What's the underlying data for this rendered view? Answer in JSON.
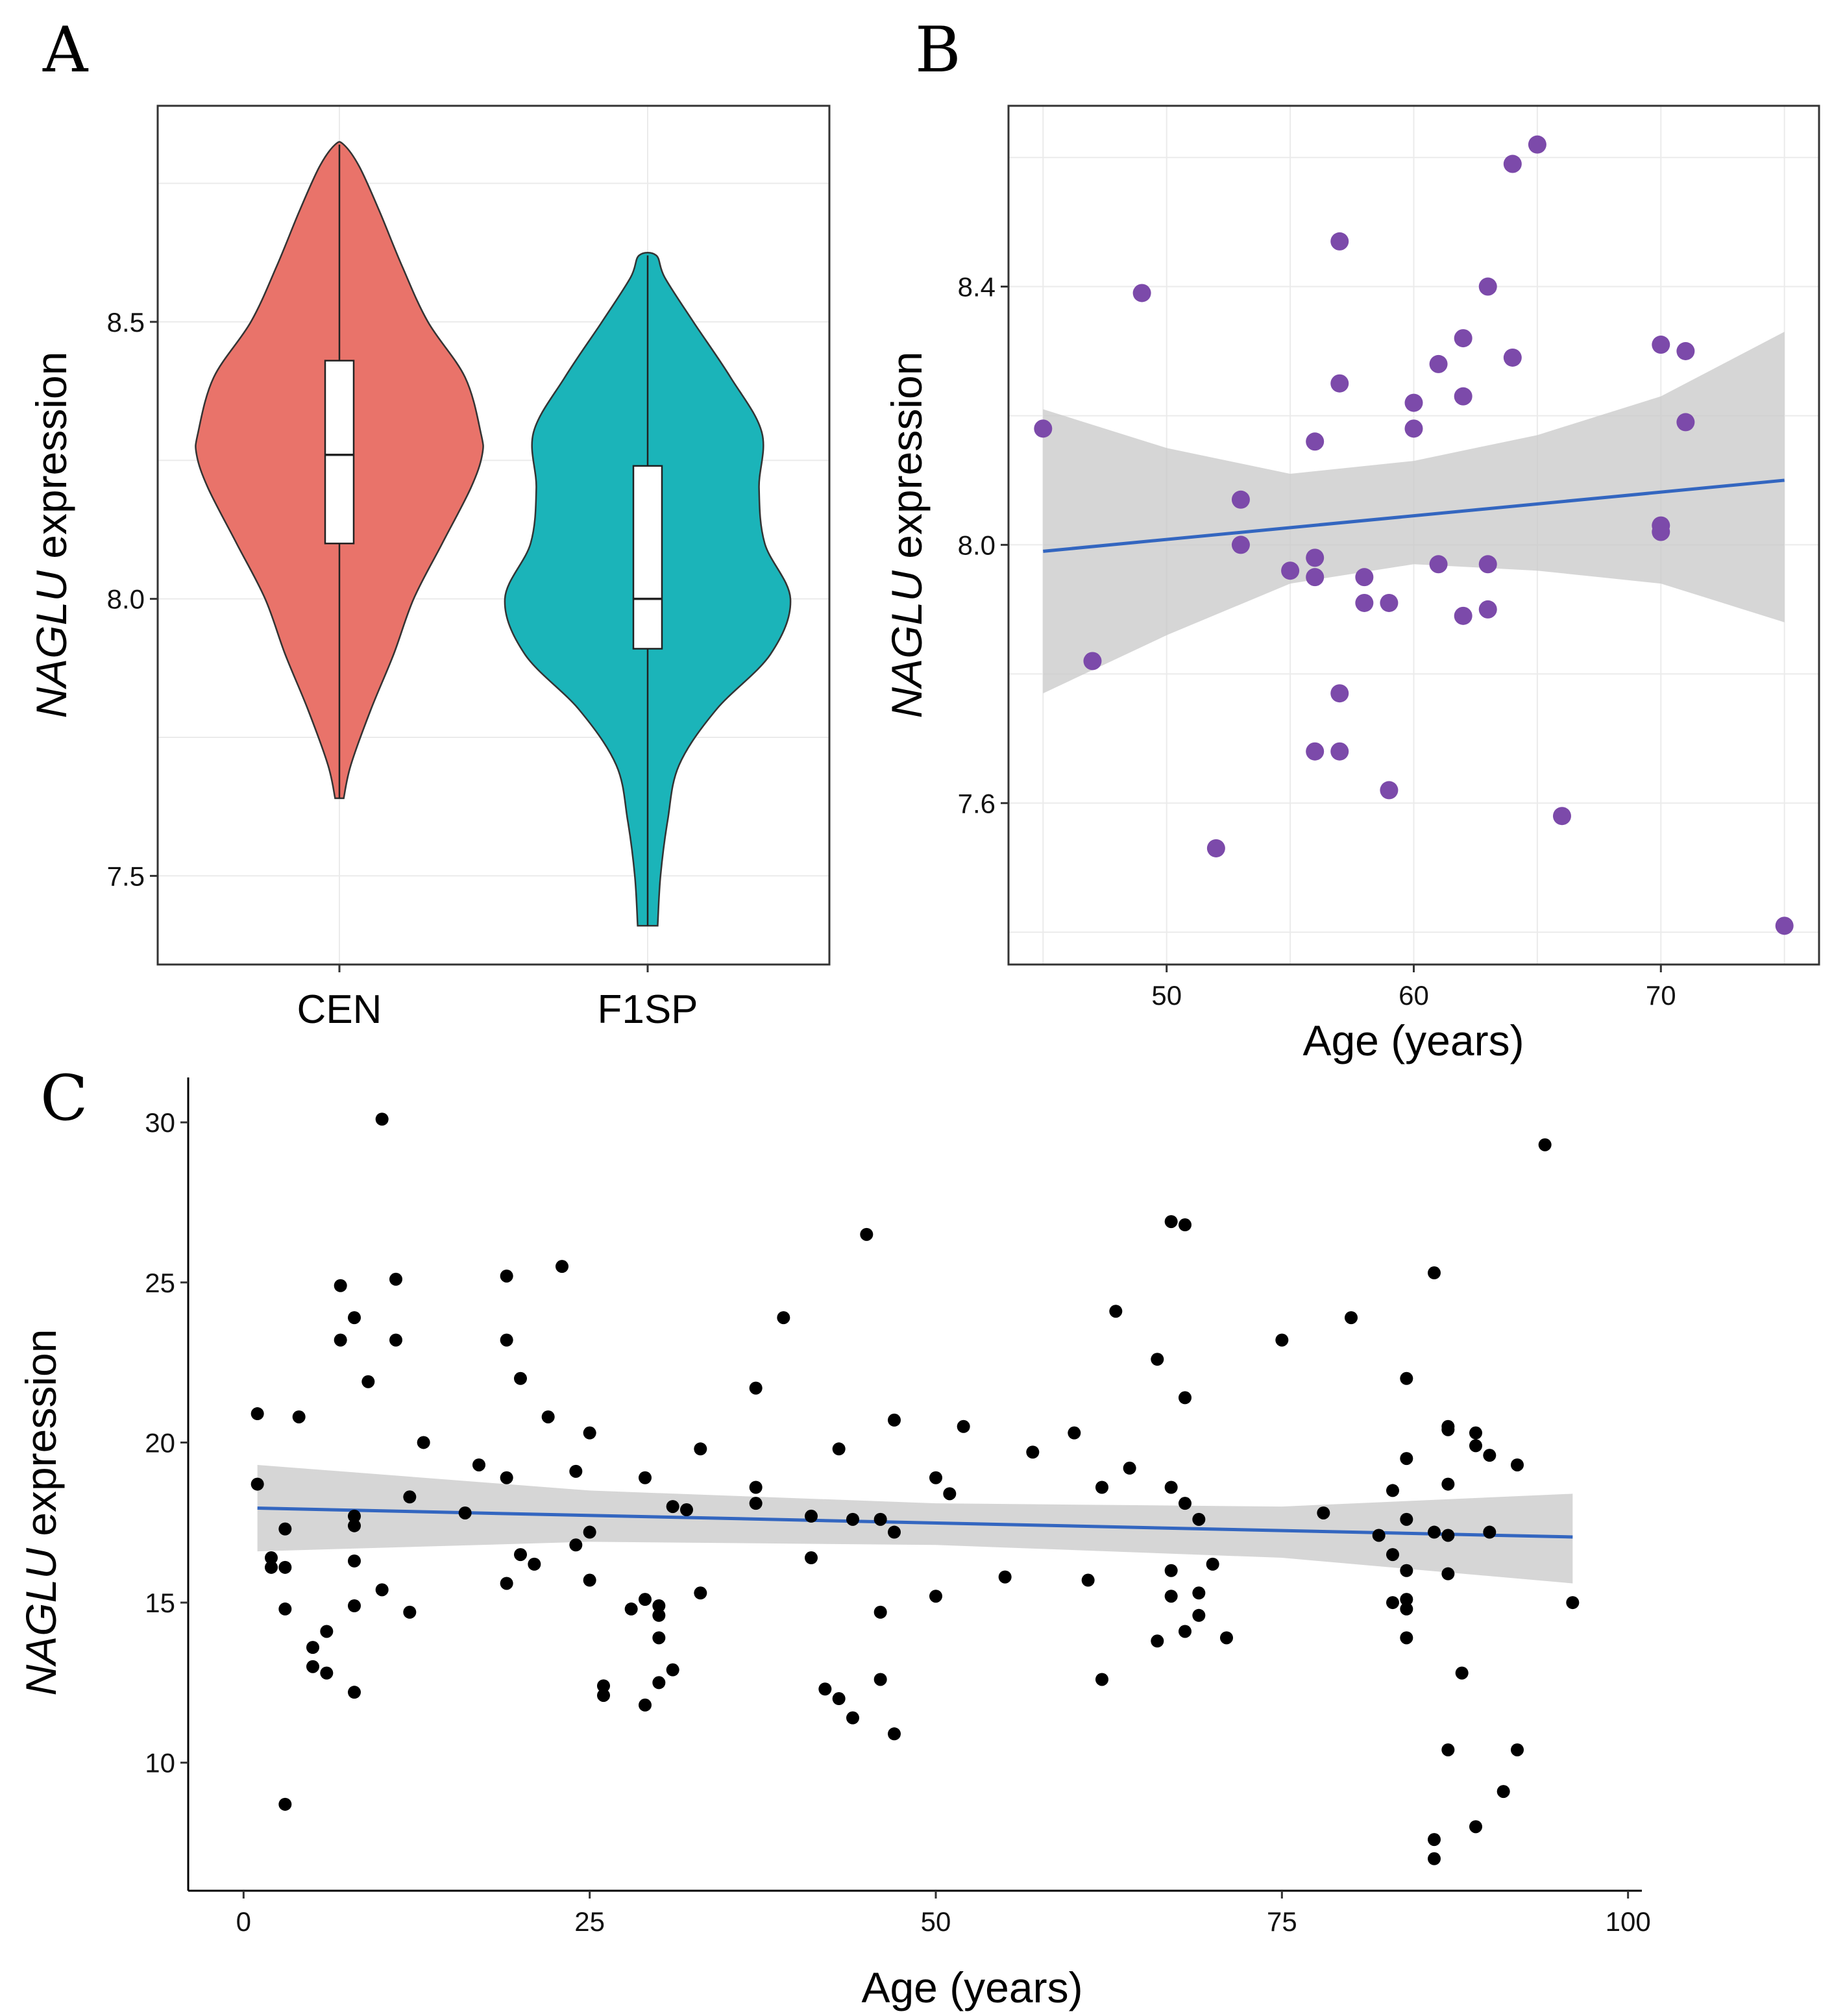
{
  "chart_data": [
    {
      "panel": "A",
      "type": "violin",
      "ylabel_italic": "NAGLU",
      "ylabel_rest": " expression",
      "categories": [
        "CEN",
        "F1SP"
      ],
      "ylim": [
        7.34,
        8.89
      ],
      "yticks": [
        "7.5",
        "8.0",
        "8.5"
      ],
      "colors": [
        "#E9736A",
        "#1BB4B9"
      ],
      "groups": [
        {
          "name": "CEN",
          "min": 7.64,
          "q1": 8.1,
          "median": 8.26,
          "q3": 8.43,
          "max": 8.82,
          "density_y": [
            7.64,
            7.7,
            7.8,
            7.9,
            8.0,
            8.1,
            8.2,
            8.26,
            8.3,
            8.4,
            8.5,
            8.6,
            8.7,
            8.78,
            8.82
          ],
          "density_w": [
            0.03,
            0.08,
            0.22,
            0.38,
            0.52,
            0.72,
            0.92,
            1.0,
            0.99,
            0.88,
            0.62,
            0.44,
            0.28,
            0.14,
            0.03
          ]
        },
        {
          "name": "F1SP",
          "min": 7.41,
          "q1": 7.91,
          "median": 8.0,
          "q3": 8.24,
          "max": 8.62,
          "density_y": [
            7.41,
            7.5,
            7.6,
            7.7,
            7.8,
            7.9,
            8.0,
            8.1,
            8.2,
            8.3,
            8.4,
            8.5,
            8.58,
            8.62
          ],
          "density_w": [
            0.07,
            0.09,
            0.14,
            0.22,
            0.48,
            0.86,
            1.0,
            0.82,
            0.78,
            0.8,
            0.58,
            0.32,
            0.12,
            0.06
          ]
        }
      ]
    },
    {
      "panel": "B",
      "type": "scatter",
      "xlabel": "Age (years)",
      "ylabel_italic": "NAGLU",
      "ylabel_rest": " expression",
      "xlim": [
        43.6,
        76.4
      ],
      "ylim": [
        7.35,
        8.68
      ],
      "xticks": [
        "50",
        "60",
        "70"
      ],
      "yticks": [
        "7.6",
        "8.0",
        "8.4"
      ],
      "point_color": "#7C4AAA",
      "line_color": "#3366C0",
      "fit": {
        "x": [
          45,
          75
        ],
        "y": [
          7.99,
          8.1
        ]
      },
      "band": {
        "x": [
          45,
          50,
          55,
          60,
          65,
          70,
          75
        ],
        "upper": [
          8.21,
          8.15,
          8.11,
          8.13,
          8.17,
          8.23,
          8.33
        ],
        "lower": [
          7.77,
          7.86,
          7.94,
          7.97,
          7.96,
          7.94,
          7.88
        ]
      },
      "points": [
        {
          "x": 45,
          "y": 8.18
        },
        {
          "x": 47,
          "y": 7.82
        },
        {
          "x": 49,
          "y": 8.39
        },
        {
          "x": 52,
          "y": 7.53
        },
        {
          "x": 53,
          "y": 8.07
        },
        {
          "x": 53,
          "y": 8.0
        },
        {
          "x": 55,
          "y": 7.96
        },
        {
          "x": 56,
          "y": 8.16
        },
        {
          "x": 56,
          "y": 7.98
        },
        {
          "x": 56,
          "y": 7.95
        },
        {
          "x": 56,
          "y": 7.68
        },
        {
          "x": 57,
          "y": 8.47
        },
        {
          "x": 57,
          "y": 8.25
        },
        {
          "x": 57,
          "y": 7.77
        },
        {
          "x": 57,
          "y": 7.68
        },
        {
          "x": 58,
          "y": 7.95
        },
        {
          "x": 58,
          "y": 7.91
        },
        {
          "x": 59,
          "y": 7.91
        },
        {
          "x": 59,
          "y": 7.62
        },
        {
          "x": 60,
          "y": 8.22
        },
        {
          "x": 60,
          "y": 8.18
        },
        {
          "x": 61,
          "y": 8.28
        },
        {
          "x": 61,
          "y": 7.97
        },
        {
          "x": 62,
          "y": 8.32
        },
        {
          "x": 62,
          "y": 8.23
        },
        {
          "x": 62,
          "y": 7.89
        },
        {
          "x": 63,
          "y": 8.4
        },
        {
          "x": 63,
          "y": 7.97
        },
        {
          "x": 63,
          "y": 7.9
        },
        {
          "x": 64,
          "y": 8.59
        },
        {
          "x": 64,
          "y": 8.29
        },
        {
          "x": 65,
          "y": 8.62
        },
        {
          "x": 66,
          "y": 7.58
        },
        {
          "x": 70,
          "y": 8.31
        },
        {
          "x": 70,
          "y": 8.03
        },
        {
          "x": 70,
          "y": 8.02
        },
        {
          "x": 71,
          "y": 8.3
        },
        {
          "x": 71,
          "y": 8.19
        },
        {
          "x": 75,
          "y": 7.41
        }
      ]
    },
    {
      "panel": "C",
      "type": "scatter",
      "xlabel": "Age (years)",
      "ylabel_italic": "NAGLU",
      "ylabel_rest": " expression",
      "xlim": [
        -4,
        101
      ],
      "ylim": [
        6.0,
        31.2
      ],
      "xticks": [
        "0",
        "25",
        "50",
        "75",
        "100"
      ],
      "yticks": [
        "10",
        "15",
        "20",
        "25",
        "30"
      ],
      "point_color": "#000000",
      "line_color": "#3366C0",
      "fit": {
        "x": [
          1,
          96
        ],
        "y": [
          17.95,
          17.05
        ]
      },
      "band": {
        "x": [
          1,
          25,
          50,
          75,
          96
        ],
        "upper": [
          19.3,
          18.5,
          18.1,
          18.0,
          18.4
        ],
        "lower": [
          16.6,
          16.9,
          16.8,
          16.4,
          15.6
        ]
      },
      "points": [
        {
          "x": 1,
          "y": 20.9
        },
        {
          "x": 1,
          "y": 18.7
        },
        {
          "x": 2,
          "y": 16.4
        },
        {
          "x": 2,
          "y": 16.1
        },
        {
          "x": 3,
          "y": 17.3
        },
        {
          "x": 3,
          "y": 16.1
        },
        {
          "x": 3,
          "y": 14.8
        },
        {
          "x": 3,
          "y": 8.7
        },
        {
          "x": 4,
          "y": 20.8
        },
        {
          "x": 5,
          "y": 13.6
        },
        {
          "x": 5,
          "y": 13.0
        },
        {
          "x": 6,
          "y": 14.1
        },
        {
          "x": 6,
          "y": 12.8
        },
        {
          "x": 7,
          "y": 24.9
        },
        {
          "x": 7,
          "y": 23.2
        },
        {
          "x": 8,
          "y": 23.9
        },
        {
          "x": 8,
          "y": 17.7
        },
        {
          "x": 8,
          "y": 17.4
        },
        {
          "x": 8,
          "y": 16.3
        },
        {
          "x": 8,
          "y": 14.9
        },
        {
          "x": 8,
          "y": 12.2
        },
        {
          "x": 9,
          "y": 21.9
        },
        {
          "x": 10,
          "y": 30.1
        },
        {
          "x": 10,
          "y": 15.4
        },
        {
          "x": 11,
          "y": 25.1
        },
        {
          "x": 11,
          "y": 23.2
        },
        {
          "x": 12,
          "y": 18.3
        },
        {
          "x": 12,
          "y": 14.7
        },
        {
          "x": 13,
          "y": 20.0
        },
        {
          "x": 16,
          "y": 17.8
        },
        {
          "x": 17,
          "y": 19.3
        },
        {
          "x": 19,
          "y": 25.2
        },
        {
          "x": 19,
          "y": 23.2
        },
        {
          "x": 19,
          "y": 18.9
        },
        {
          "x": 19,
          "y": 15.6
        },
        {
          "x": 20,
          "y": 22.0
        },
        {
          "x": 20,
          "y": 16.5
        },
        {
          "x": 21,
          "y": 16.2
        },
        {
          "x": 22,
          "y": 20.8
        },
        {
          "x": 23,
          "y": 25.5
        },
        {
          "x": 24,
          "y": 19.1
        },
        {
          "x": 24,
          "y": 16.8
        },
        {
          "x": 25,
          "y": 20.3
        },
        {
          "x": 25,
          "y": 17.2
        },
        {
          "x": 25,
          "y": 15.7
        },
        {
          "x": 26,
          "y": 12.4
        },
        {
          "x": 26,
          "y": 12.1
        },
        {
          "x": 28,
          "y": 14.8
        },
        {
          "x": 29,
          "y": 18.9
        },
        {
          "x": 29,
          "y": 15.1
        },
        {
          "x": 29,
          "y": 11.8
        },
        {
          "x": 30,
          "y": 14.9
        },
        {
          "x": 30,
          "y": 14.6
        },
        {
          "x": 30,
          "y": 13.9
        },
        {
          "x": 30,
          "y": 12.5
        },
        {
          "x": 31,
          "y": 18.0
        },
        {
          "x": 31,
          "y": 12.9
        },
        {
          "x": 32,
          "y": 17.9
        },
        {
          "x": 33,
          "y": 19.8
        },
        {
          "x": 33,
          "y": 15.3
        },
        {
          "x": 37,
          "y": 21.7
        },
        {
          "x": 37,
          "y": 18.6
        },
        {
          "x": 37,
          "y": 18.1
        },
        {
          "x": 39,
          "y": 23.9
        },
        {
          "x": 41,
          "y": 17.7
        },
        {
          "x": 41,
          "y": 16.4
        },
        {
          "x": 42,
          "y": 12.3
        },
        {
          "x": 43,
          "y": 19.8
        },
        {
          "x": 43,
          "y": 12.0
        },
        {
          "x": 44,
          "y": 17.6
        },
        {
          "x": 44,
          "y": 11.4
        },
        {
          "x": 45,
          "y": 26.5
        },
        {
          "x": 46,
          "y": 17.6
        },
        {
          "x": 46,
          "y": 14.7
        },
        {
          "x": 46,
          "y": 12.6
        },
        {
          "x": 47,
          "y": 20.7
        },
        {
          "x": 47,
          "y": 17.2
        },
        {
          "x": 47,
          "y": 10.9
        },
        {
          "x": 50,
          "y": 18.9
        },
        {
          "x": 50,
          "y": 15.2
        },
        {
          "x": 51,
          "y": 18.4
        },
        {
          "x": 52,
          "y": 20.5
        },
        {
          "x": 55,
          "y": 15.8
        },
        {
          "x": 57,
          "y": 19.7
        },
        {
          "x": 60,
          "y": 20.3
        },
        {
          "x": 61,
          "y": 15.7
        },
        {
          "x": 62,
          "y": 18.6
        },
        {
          "x": 62,
          "y": 12.6
        },
        {
          "x": 63,
          "y": 24.1
        },
        {
          "x": 64,
          "y": 19.2
        },
        {
          "x": 66,
          "y": 22.6
        },
        {
          "x": 66,
          "y": 13.8
        },
        {
          "x": 67,
          "y": 26.9
        },
        {
          "x": 67,
          "y": 18.6
        },
        {
          "x": 67,
          "y": 16.0
        },
        {
          "x": 67,
          "y": 15.2
        },
        {
          "x": 68,
          "y": 26.8
        },
        {
          "x": 68,
          "y": 21.4
        },
        {
          "x": 68,
          "y": 18.1
        },
        {
          "x": 68,
          "y": 14.1
        },
        {
          "x": 69,
          "y": 17.6
        },
        {
          "x": 69,
          "y": 15.3
        },
        {
          "x": 69,
          "y": 14.6
        },
        {
          "x": 70,
          "y": 16.2
        },
        {
          "x": 71,
          "y": 13.9
        },
        {
          "x": 75,
          "y": 23.2
        },
        {
          "x": 78,
          "y": 17.8
        },
        {
          "x": 80,
          "y": 23.9
        },
        {
          "x": 82,
          "y": 17.1
        },
        {
          "x": 83,
          "y": 18.5
        },
        {
          "x": 83,
          "y": 16.5
        },
        {
          "x": 83,
          "y": 15.0
        },
        {
          "x": 84,
          "y": 22.0
        },
        {
          "x": 84,
          "y": 19.5
        },
        {
          "x": 84,
          "y": 17.6
        },
        {
          "x": 84,
          "y": 16.0
        },
        {
          "x": 84,
          "y": 15.1
        },
        {
          "x": 84,
          "y": 14.8
        },
        {
          "x": 84,
          "y": 13.9
        },
        {
          "x": 86,
          "y": 25.3
        },
        {
          "x": 86,
          "y": 17.2
        },
        {
          "x": 86,
          "y": 7.6
        },
        {
          "x": 86,
          "y": 7.0
        },
        {
          "x": 87,
          "y": 20.5
        },
        {
          "x": 87,
          "y": 20.4
        },
        {
          "x": 87,
          "y": 18.7
        },
        {
          "x": 87,
          "y": 17.1
        },
        {
          "x": 87,
          "y": 15.9
        },
        {
          "x": 87,
          "y": 10.4
        },
        {
          "x": 88,
          "y": 12.8
        },
        {
          "x": 89,
          "y": 20.3
        },
        {
          "x": 89,
          "y": 19.9
        },
        {
          "x": 89,
          "y": 8.0
        },
        {
          "x": 90,
          "y": 19.6
        },
        {
          "x": 90,
          "y": 17.2
        },
        {
          "x": 91,
          "y": 9.1
        },
        {
          "x": 92,
          "y": 19.3
        },
        {
          "x": 92,
          "y": 10.4
        },
        {
          "x": 94,
          "y": 29.3
        },
        {
          "x": 96,
          "y": 15.0
        }
      ]
    }
  ],
  "panels": {
    "a_letter": "A",
    "b_letter": "B",
    "c_letter": "C"
  }
}
